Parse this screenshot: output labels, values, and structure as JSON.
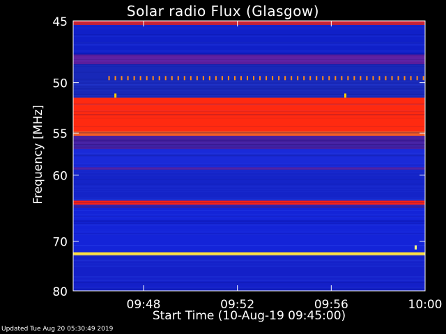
{
  "chart_data": {
    "type": "heatmap",
    "title": "Solar radio Flux (Glasgow)",
    "xlabel": "Start Time (10-Aug-19 09:45:00)",
    "ylabel": "Frequency [MHz]",
    "x_ticks": [
      "09:48",
      "09:52",
      "09:56",
      "10:00"
    ],
    "x_tick_minutes": [
      48,
      52,
      56,
      60
    ],
    "xlim_minutes": [
      45,
      60
    ],
    "y_ticks": [
      45,
      50,
      55,
      60,
      70,
      80
    ],
    "ylim": [
      45,
      80
    ],
    "y_scale": "reciprocal",
    "colormap": "blue-red-yellow",
    "bands": [
      {
        "f_from": 45.0,
        "f_to": 45.3,
        "color": "#e02020"
      },
      {
        "f_from": 45.3,
        "f_to": 47.6,
        "color": "#1020c8"
      },
      {
        "f_from": 47.6,
        "f_to": 48.4,
        "color": "#6020a0"
      },
      {
        "f_from": 48.4,
        "f_to": 51.4,
        "color": "#1828b8"
      },
      {
        "f_from": 51.4,
        "f_to": 54.8,
        "color": "#ff2a10"
      },
      {
        "f_from": 54.8,
        "f_to": 55.3,
        "color": "#ff6020"
      },
      {
        "f_from": 55.3,
        "f_to": 56.8,
        "color": "#4820a0"
      },
      {
        "f_from": 56.8,
        "f_to": 59.0,
        "color": "#1a2ad8"
      },
      {
        "f_from": 59.0,
        "f_to": 59.3,
        "color": "#5020a0"
      },
      {
        "f_from": 59.3,
        "f_to": 63.5,
        "color": "#1424c8"
      },
      {
        "f_from": 63.5,
        "f_to": 64.1,
        "color": "#ff2010"
      },
      {
        "f_from": 64.1,
        "f_to": 64.6,
        "color": "#3020a8"
      },
      {
        "f_from": 64.6,
        "f_to": 72.0,
        "color": "#1424d8"
      },
      {
        "f_from": 72.0,
        "f_to": 72.6,
        "color": "#ffe040"
      },
      {
        "f_from": 72.6,
        "f_to": 80.0,
        "color": "#1420c8"
      }
    ],
    "burst_row_mhz": 49.6,
    "burst_color": "#ff8c1a",
    "burst_count": 51,
    "spots": [
      {
        "minute": 46.8,
        "mhz": 51.2,
        "color": "#ffcc00"
      },
      {
        "minute": 56.6,
        "mhz": 51.2,
        "color": "#ffcc00"
      },
      {
        "minute": 59.6,
        "mhz": 71.1,
        "color": "#ffff80"
      }
    ]
  },
  "footer": "Updated Tue Aug 20 05:30:49 2019"
}
